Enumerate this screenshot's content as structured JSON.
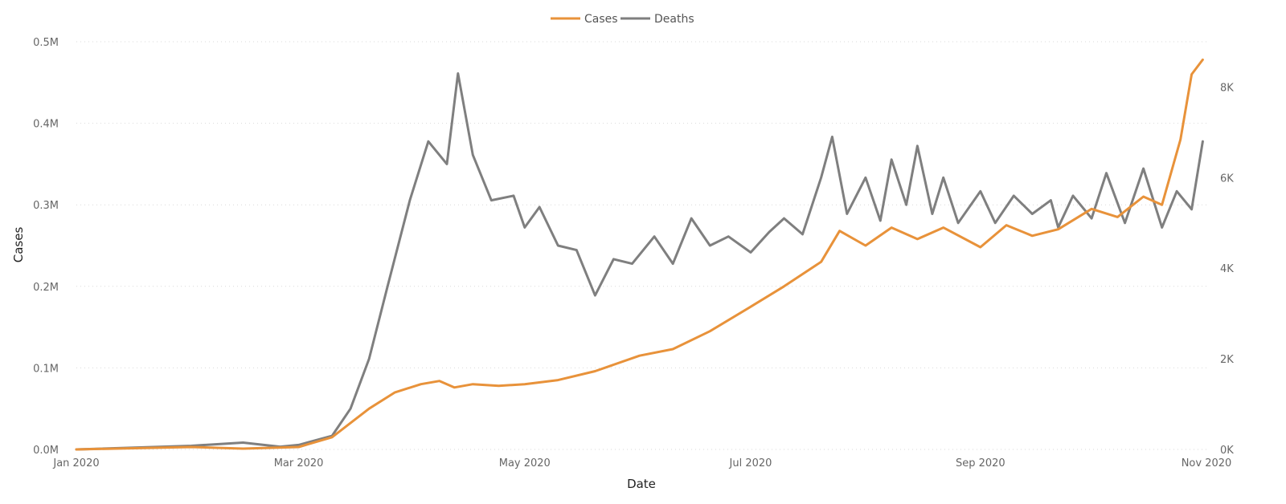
{
  "chart_data": {
    "type": "line",
    "xlabel": "Date",
    "ylabel": "Cases",
    "y2label": "",
    "legend_position": "top-center",
    "grid": true,
    "xlim": [
      "2020-01-01",
      "2020-11-01"
    ],
    "ylim": [
      0,
      500000
    ],
    "y2lim": [
      0,
      9000
    ],
    "x_ticks": [
      "2020-01-01",
      "2020-03-01",
      "2020-05-01",
      "2020-07-01",
      "2020-09-01",
      "2020-11-01"
    ],
    "x_tick_labels": [
      "Jan 2020",
      "Mar 2020",
      "May 2020",
      "Jul 2020",
      "Sep 2020",
      "Nov 2020"
    ],
    "y_ticks": [
      0,
      100000,
      200000,
      300000,
      400000,
      500000
    ],
    "y_tick_labels": [
      "0.0M",
      "0.1M",
      "0.2M",
      "0.3M",
      "0.4M",
      "0.5M"
    ],
    "y2_ticks": [
      0,
      2000,
      4000,
      6000,
      8000
    ],
    "y2_tick_labels": [
      "0K",
      "2K",
      "4K",
      "6K",
      "8K"
    ],
    "series": [
      {
        "name": "Cases",
        "axis": "left",
        "color": "#E8923A",
        "x": [
          "2020-01-01",
          "2020-02-01",
          "2020-02-15",
          "2020-03-01",
          "2020-03-10",
          "2020-03-20",
          "2020-03-27",
          "2020-04-03",
          "2020-04-08",
          "2020-04-12",
          "2020-04-17",
          "2020-04-24",
          "2020-05-01",
          "2020-05-10",
          "2020-05-20",
          "2020-06-01",
          "2020-06-10",
          "2020-06-20",
          "2020-07-01",
          "2020-07-10",
          "2020-07-20",
          "2020-07-25",
          "2020-08-01",
          "2020-08-08",
          "2020-08-15",
          "2020-08-22",
          "2020-09-01",
          "2020-09-08",
          "2020-09-15",
          "2020-09-22",
          "2020-10-01",
          "2020-10-08",
          "2020-10-15",
          "2020-10-20",
          "2020-10-25",
          "2020-10-28",
          "2020-10-31"
        ],
        "values": [
          0,
          3000,
          1000,
          3000,
          15000,
          50000,
          70000,
          80000,
          84000,
          76000,
          80000,
          78000,
          80000,
          85000,
          96000,
          115000,
          123000,
          145000,
          175000,
          200000,
          230000,
          268000,
          250000,
          272000,
          258000,
          272000,
          248000,
          275000,
          262000,
          270000,
          295000,
          285000,
          310000,
          300000,
          380000,
          460000,
          478000
        ]
      },
      {
        "name": "Deaths",
        "axis": "right",
        "color": "#7F7F7F",
        "x": [
          "2020-01-01",
          "2020-02-01",
          "2020-02-15",
          "2020-02-25",
          "2020-03-01",
          "2020-03-10",
          "2020-03-15",
          "2020-03-20",
          "2020-03-25",
          "2020-03-31",
          "2020-04-05",
          "2020-04-10",
          "2020-04-13",
          "2020-04-17",
          "2020-04-22",
          "2020-04-28",
          "2020-05-01",
          "2020-05-05",
          "2020-05-10",
          "2020-05-15",
          "2020-05-20",
          "2020-05-25",
          "2020-05-30",
          "2020-06-05",
          "2020-06-10",
          "2020-06-15",
          "2020-06-20",
          "2020-06-25",
          "2020-07-01",
          "2020-07-06",
          "2020-07-10",
          "2020-07-15",
          "2020-07-20",
          "2020-07-23",
          "2020-07-27",
          "2020-08-01",
          "2020-08-05",
          "2020-08-08",
          "2020-08-12",
          "2020-08-15",
          "2020-08-19",
          "2020-08-22",
          "2020-08-26",
          "2020-09-01",
          "2020-09-05",
          "2020-09-10",
          "2020-09-15",
          "2020-09-20",
          "2020-09-22",
          "2020-09-26",
          "2020-10-01",
          "2020-10-05",
          "2020-10-10",
          "2020-10-15",
          "2020-10-20",
          "2020-10-24",
          "2020-10-28",
          "2020-10-31"
        ],
        "values": [
          0,
          80,
          150,
          60,
          100,
          300,
          900,
          2000,
          3600,
          5500,
          6800,
          6300,
          8300,
          6500,
          5500,
          5600,
          4900,
          5350,
          4500,
          4400,
          3400,
          4200,
          4100,
          4700,
          4100,
          5100,
          4500,
          4700,
          4350,
          4800,
          5100,
          4750,
          6000,
          6900,
          5200,
          6000,
          5050,
          6400,
          5400,
          6700,
          5200,
          6000,
          5000,
          5700,
          5000,
          5600,
          5200,
          5500,
          4900,
          5600,
          5100,
          6100,
          5000,
          6200,
          4900,
          5700,
          5300,
          6800
        ]
      }
    ]
  }
}
